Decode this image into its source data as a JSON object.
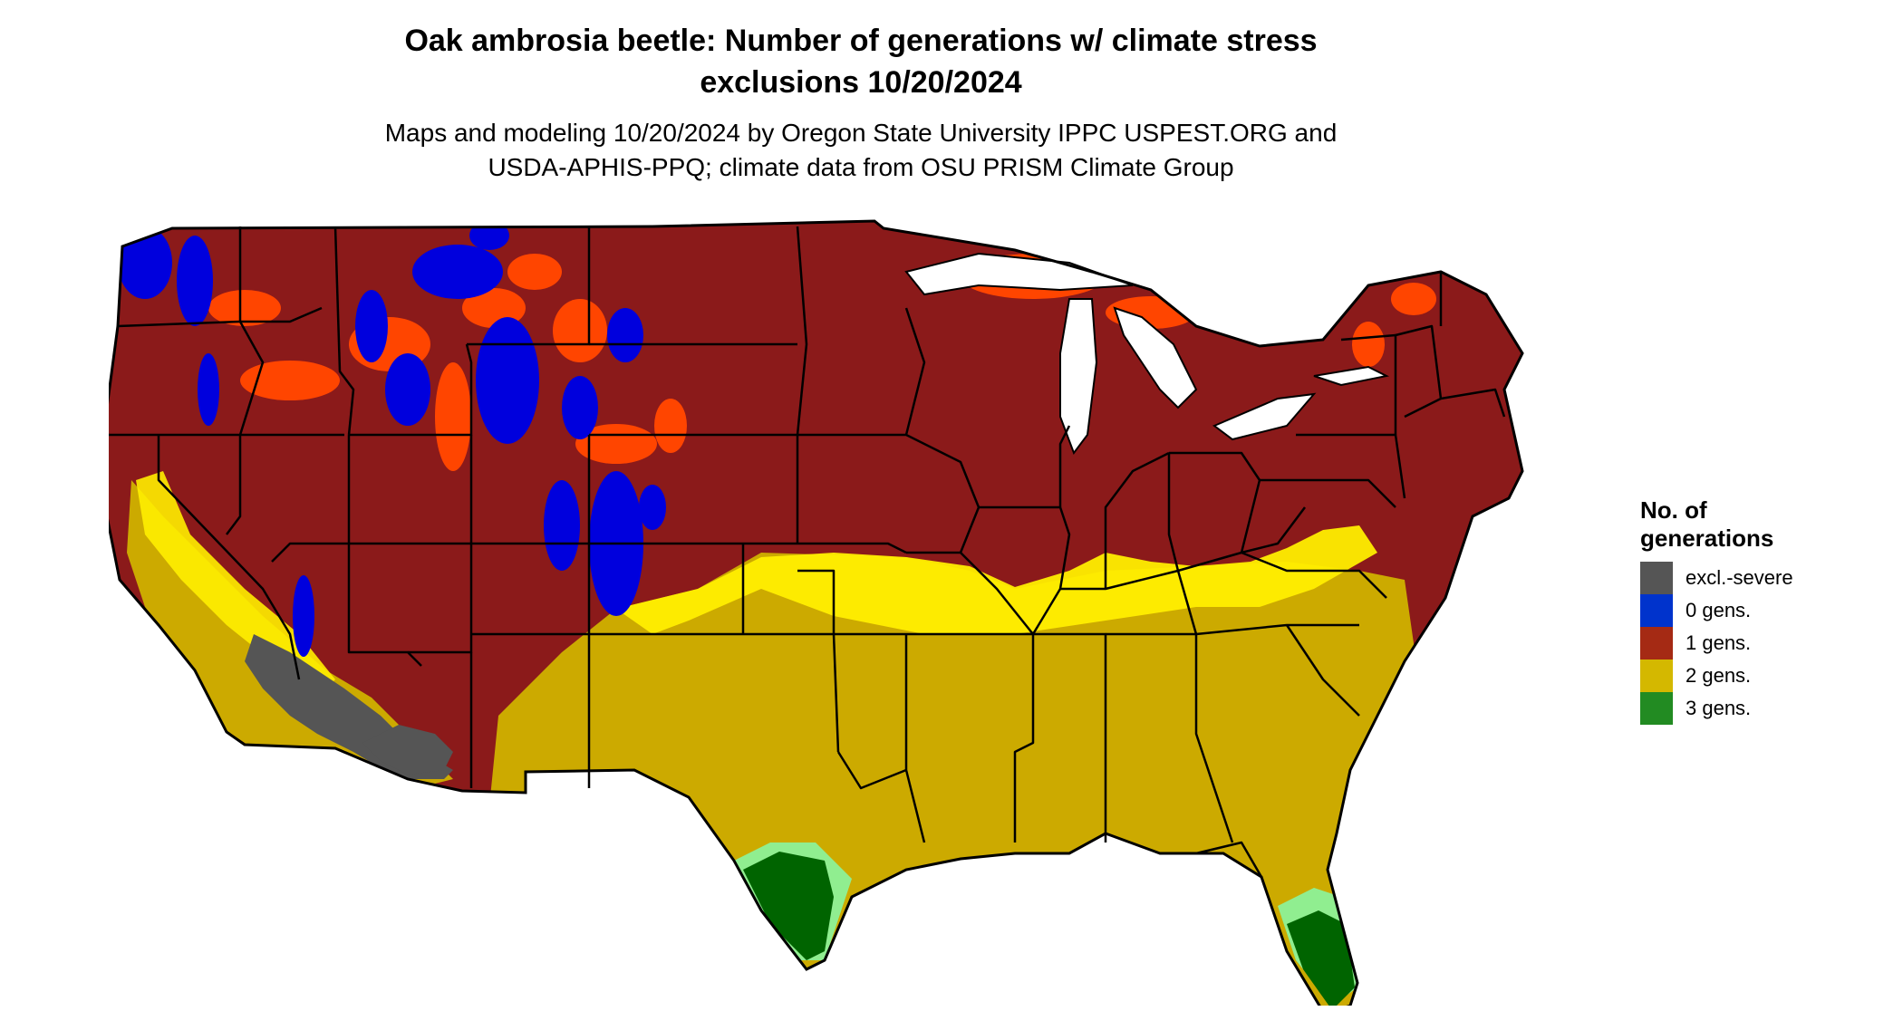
{
  "title": {
    "line1": "Oak ambrosia beetle: Number of generations w/ climate stress",
    "line2": "exclusions 10/20/2024"
  },
  "subtitle": {
    "line1": "Maps and modeling 10/20/2024 by Oregon State University IPPC USPEST.ORG and",
    "line2": "USDA-APHIS-PPQ; climate data from OSU PRISM Climate Group"
  },
  "legend": {
    "title_line1": "No. of",
    "title_line2": "generations",
    "items": [
      {
        "label": "excl.-severe",
        "color": "#555555"
      },
      {
        "label": "0 gens.",
        "color": "#0033cc"
      },
      {
        "label": "1 gens.",
        "color": "#a52a14"
      },
      {
        "label": "2 gens.",
        "color": "#d4b800"
      },
      {
        "label": "3 gens.",
        "color": "#228b22"
      }
    ]
  },
  "map_colors": {
    "one_gen": "#8b1a1a",
    "one_gen_light": "#ff4500",
    "zero_gen": "#0000dd",
    "two_gen": "#ccaa00",
    "two_gen_light": "#ffee00",
    "three_gen": "#006400",
    "three_gen_light": "#90ee90",
    "excluded": "#555555",
    "border": "#000000"
  }
}
